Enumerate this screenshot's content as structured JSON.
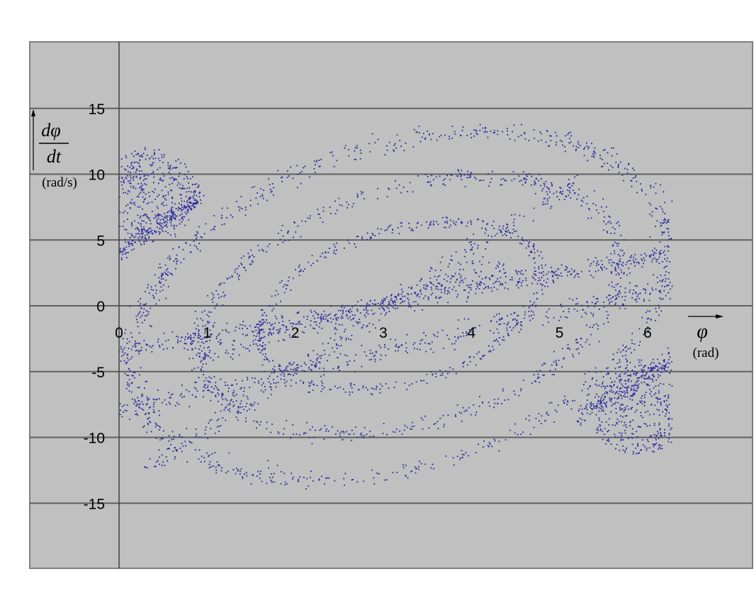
{
  "chart_data": {
    "type": "scatter",
    "title": "",
    "xlabel": "φ",
    "xunit": "(rad)",
    "ylabel_num": "dφ",
    "ylabel_den": "dt",
    "yunit": "(rad/s)",
    "xlim": [
      0,
      6.28
    ],
    "ylim": [
      -20,
      20
    ],
    "x_ticks": [
      "0",
      "1",
      "2",
      "3",
      "4",
      "5",
      "6"
    ],
    "x_tick_values": [
      0,
      1,
      2,
      3,
      4,
      5,
      6
    ],
    "y_ticks": [
      "15",
      "10",
      "5",
      "0",
      "-5",
      "-10",
      "-15"
    ],
    "y_tick_values": [
      15,
      10,
      5,
      0,
      -5,
      -10,
      -15
    ],
    "grid": "horizontal",
    "background_color": "#c0c0c0",
    "point_color": "#2a2aa0",
    "series": [
      {
        "bands": [
          {
            "x_start": 0.0,
            "x_end": 6.28,
            "y_start": -3.5,
            "y_end": 4.0,
            "count": 520,
            "spread": 0.45
          },
          {
            "x_start": 0.0,
            "x_end": 6.28,
            "y_start": -8.0,
            "y_end": 1.5,
            "count": 420,
            "spread": 0.55
          },
          {
            "x_start": 0.3,
            "x_end": 5.2,
            "y_start": -12.5,
            "y_end": 9.5,
            "count": 300,
            "spread": 0.6
          },
          {
            "x_start": 0.9,
            "x_end": 4.4,
            "y_start": -4.0,
            "y_end": 3.0,
            "count": 260,
            "spread": 0.5
          },
          {
            "x_start": 0.0,
            "x_end": 0.95,
            "y_start": 4.0,
            "y_end": 8.5,
            "count": 220,
            "spread": 0.5
          },
          {
            "x_start": 5.2,
            "x_end": 6.28,
            "y_start": -8.5,
            "y_end": -4.0,
            "count": 220,
            "spread": 0.5
          }
        ],
        "outer_loop": {
          "cx": 3.2,
          "cy": 0.0,
          "rx": 3.05,
          "ry": 12.6,
          "tilt": 0.62,
          "count": 900,
          "spread": 0.5
        },
        "inner_loop": {
          "cx": 3.3,
          "cy": 0.0,
          "rx": 2.4,
          "ry": 9.2,
          "tilt": 0.62,
          "count": 650,
          "spread": 0.55
        },
        "core_loop": {
          "cx": 3.2,
          "cy": 0.0,
          "rx": 1.6,
          "ry": 6.0,
          "tilt": 0.62,
          "count": 420,
          "spread": 0.5
        },
        "top_left_lobe": {
          "cx": 0.35,
          "cy": 8.5,
          "rx": 0.55,
          "ry": 3.5,
          "count": 420,
          "spread": 0.45
        },
        "bottom_right_lobe": {
          "cx": 5.9,
          "cy": -7.8,
          "rx": 0.55,
          "ry": 3.6,
          "count": 420,
          "spread": 0.45
        }
      }
    ]
  }
}
